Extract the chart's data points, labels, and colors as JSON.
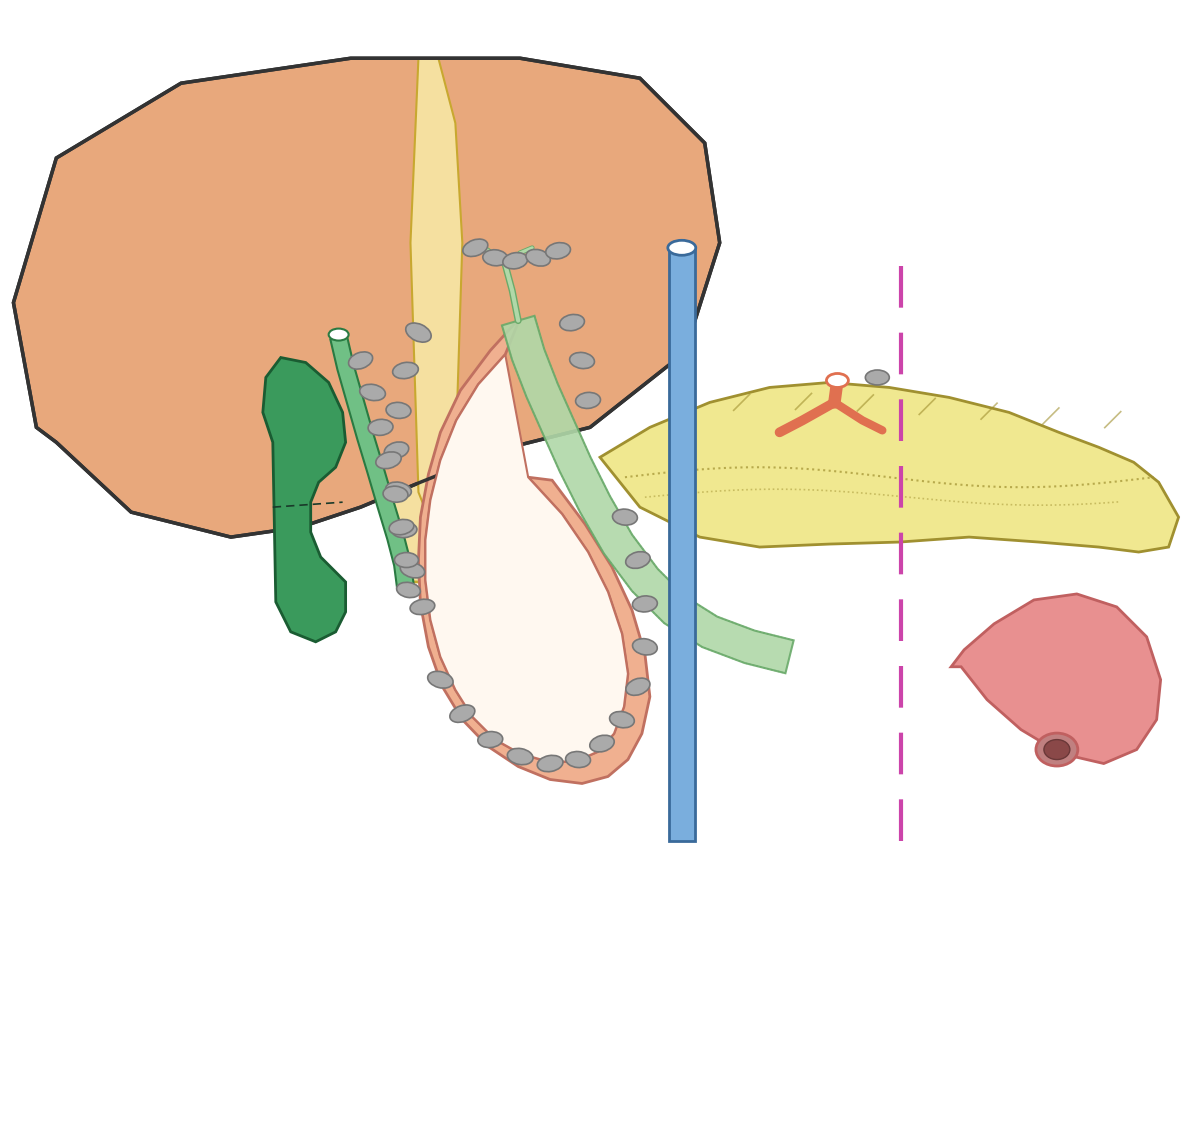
{
  "bg": "#ffffff",
  "liver_fill": "#E8A87C",
  "liver_edge": "#333333",
  "div_fill": "#F5E0A0",
  "div_edge": "#c8a830",
  "gb_fill": "#3a9a5c",
  "gb_edge": "#1a5c32",
  "bile_fill": "#70C085",
  "bile_edge": "#2a7a42",
  "hep_fat_fill": "#F5E0A0",
  "hep_fat_edge": "#c8a830",
  "pan_fill": "#F0E890",
  "pan_edge": "#a09030",
  "duo_fill": "#F0B090",
  "duo_edge": "#c07060",
  "duo_inner_fill": "#FFF8F0",
  "spleen_fill": "#E89090",
  "spleen_edge": "#c06060",
  "portal_fill": "#7AAEDD",
  "portal_edge": "#3a6a9a",
  "celiac_fill": "#E07050",
  "node_fill": "#aaaaaa",
  "node_edge": "#777777",
  "green_fill": "#b0d8a8",
  "green_edge": "#6aaa6a",
  "dashed_color": "#cc44aa",
  "figsize": [
    12.0,
    11.42
  ],
  "dpi": 100
}
